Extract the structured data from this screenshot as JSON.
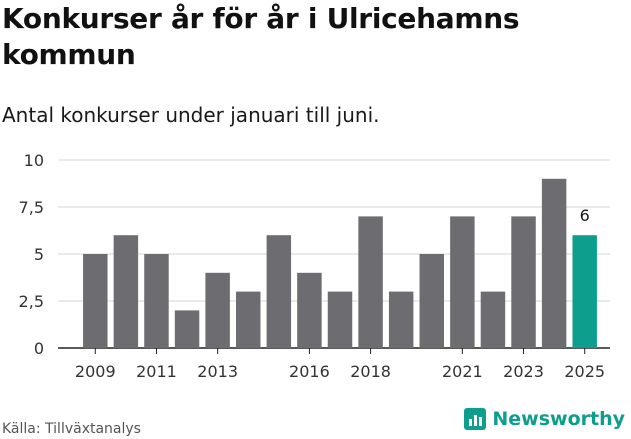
{
  "header": {
    "title": "Konkurser år för år i Ulricehamns kommun",
    "subtitle": "Antal konkurser under januari till juni."
  },
  "footer": {
    "source": "Källa: Tillväxtanalys",
    "brand": "Newsworthy",
    "brand_icon": "newsworthy-chart-logo-icon"
  },
  "colors": {
    "bar": "#6d6c70",
    "highlight": "#0e9e8e",
    "grid": "#d4d4d4",
    "axis": "#222222",
    "brand": "#0e9e8e"
  },
  "chart_data": {
    "type": "bar",
    "categories": [
      "2009",
      "2010",
      "2011",
      "2012",
      "2013",
      "2014",
      "2015",
      "2016",
      "2017",
      "2018",
      "2019",
      "2020",
      "2021",
      "2022",
      "2023",
      "2024",
      "2025"
    ],
    "values": [
      5,
      6,
      5,
      2,
      4,
      3,
      6,
      4,
      3,
      7,
      3,
      5,
      7,
      3,
      7,
      9,
      6
    ],
    "highlight_category": "2025",
    "data_labels": [
      {
        "category": "2025",
        "text": "6"
      }
    ],
    "x_tick_labels": [
      "2009",
      "2011",
      "2013",
      "2016",
      "2018",
      "2021",
      "2023",
      "2025"
    ],
    "y_ticks": [
      0,
      2.5,
      5,
      7.5,
      10
    ],
    "y_tick_labels": [
      "0",
      "2,5",
      "5",
      "7,5",
      "10"
    ],
    "ylim": [
      0,
      10
    ],
    "grid": "horizontal",
    "legend": "none",
    "title": "Konkurser år för år i Ulricehamns kommun",
    "subtitle": "Antal konkurser under januari till juni.",
    "xlabel": "",
    "ylabel": ""
  }
}
